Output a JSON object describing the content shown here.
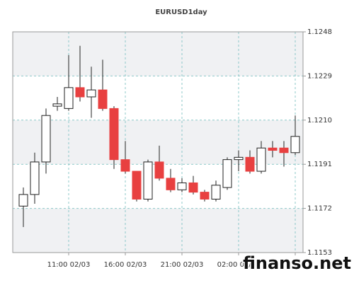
{
  "chart_data": {
    "type": "candlestick",
    "title": "EURUSD1day",
    "watermark": "finanso.net",
    "categories": [
      null,
      null,
      null,
      null,
      "11:00 02/03",
      null,
      null,
      null,
      null,
      "16:00 02/03",
      null,
      null,
      null,
      null,
      "21:00 02/03",
      null,
      null,
      null,
      null,
      "02:00 02/04",
      null,
      null,
      null,
      null,
      null
    ],
    "open": [
      1.1173,
      1.1178,
      1.1192,
      1.1216,
      1.1215,
      1.1224,
      1.122,
      1.1223,
      1.1215,
      1.1193,
      1.1188,
      1.1176,
      1.1192,
      1.1185,
      1.118,
      1.1183,
      1.1179,
      1.1176,
      1.1181,
      1.1193,
      1.1194,
      1.1188,
      1.1198,
      1.1198,
      1.1196
    ],
    "high": [
      1.1181,
      1.1196,
      1.1215,
      1.122,
      1.1238,
      1.1242,
      1.1233,
      1.1236,
      1.1216,
      1.1201,
      1.1188,
      1.1193,
      1.1199,
      1.1189,
      1.1185,
      1.1186,
      1.118,
      1.1184,
      1.1194,
      1.1197,
      1.1197,
      1.1201,
      1.1201,
      1.1201,
      1.1212
    ],
    "low": [
      1.1164,
      1.1174,
      1.1187,
      1.1214,
      1.1214,
      1.1218,
      1.1211,
      1.1214,
      1.1189,
      1.1187,
      1.1175,
      1.1175,
      1.1184,
      1.1179,
      1.1179,
      1.1178,
      1.1175,
      1.1175,
      1.118,
      1.1188,
      1.1187,
      1.1187,
      1.1194,
      1.119,
      1.1195
    ],
    "close": [
      1.1178,
      1.1192,
      1.1212,
      1.1217,
      1.1224,
      1.122,
      1.1223,
      1.1215,
      1.1193,
      1.1188,
      1.1176,
      1.1192,
      1.1185,
      1.118,
      1.1183,
      1.1179,
      1.1176,
      1.1182,
      1.1193,
      1.1194,
      1.1188,
      1.1198,
      1.1197,
      1.1196,
      1.1203
    ],
    "up_color": "#ffffff",
    "down_color": "#e84040",
    "edge_color": "#222222",
    "ylim": [
      1.1153,
      1.1248
    ],
    "yticks": [
      1.1153,
      1.1172,
      1.1191,
      {
        "value": 1.121,
        "label": "1.1210"
      },
      1.1229,
      1.1248
    ],
    "grid": true
  }
}
